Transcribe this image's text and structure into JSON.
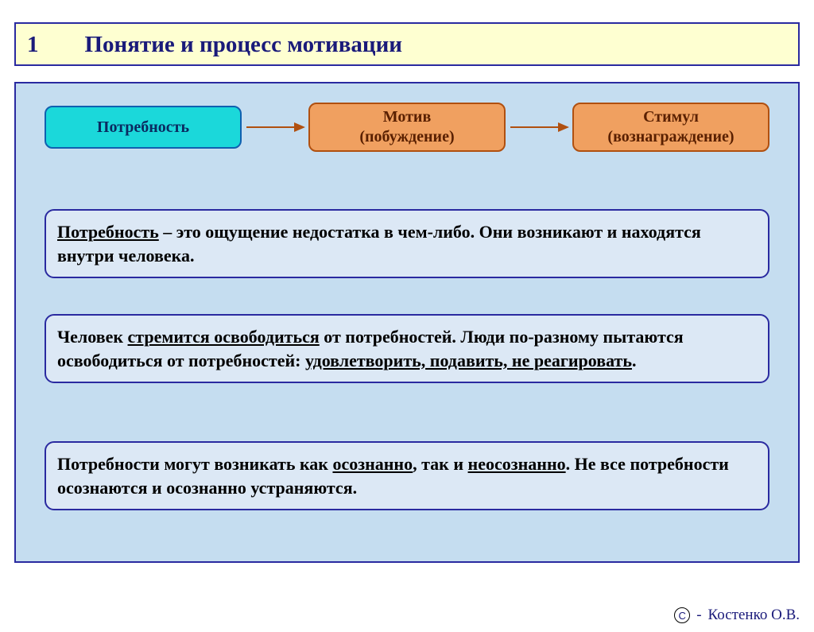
{
  "colors": {
    "title_bg": "#feffd1",
    "title_border": "#2a2aa0",
    "title_text": "#1a1a7a",
    "panel_border": "#2a2aa0",
    "panel_bg": "#c5ddf0",
    "box1_bg": "#1bd8da",
    "box1_border": "#1060b0",
    "box1_text": "#0a2a60",
    "box23_bg": "#f0a060",
    "box23_border": "#b05010",
    "box23_text": "#5a2000",
    "arrow": "#b05010",
    "textbox_bg": "#dce8f5",
    "textbox_border": "#2a2aa0",
    "textbox_text": "#000000",
    "footer_text": "#1a1a7a"
  },
  "title": {
    "number": "1",
    "text": "Понятие и процесс мотивации"
  },
  "flow": {
    "box1": "Потребность",
    "box2_l1": "Мотив",
    "box2_l2": "(побуждение)",
    "box3_l1": "Стимул",
    "box3_l2": "(вознаграждение)"
  },
  "textboxes": {
    "tb1_a": "Потребность",
    "tb1_b": " – это ощущение недостатка в чем-либо. Они возникают и находятся внутри человека.",
    "tb2_a": "Человек ",
    "tb2_b": "стремится освободиться",
    "tb2_c": " от потребностей. Люди по-разному пытаются освободиться от потребностей: ",
    "tb2_d": "удовлетворить, подавить, не реагировать",
    "tb2_e": ".",
    "tb3_a": "Потребности могут возникать как ",
    "tb3_b": "осознанно",
    "tb3_c": ", так и ",
    "tb3_d": "неосознанно",
    "tb3_e": ". Не все потребности осознаются и осознанно устраняются."
  },
  "footer": {
    "dash": "-",
    "author": "Костенко О.В."
  }
}
